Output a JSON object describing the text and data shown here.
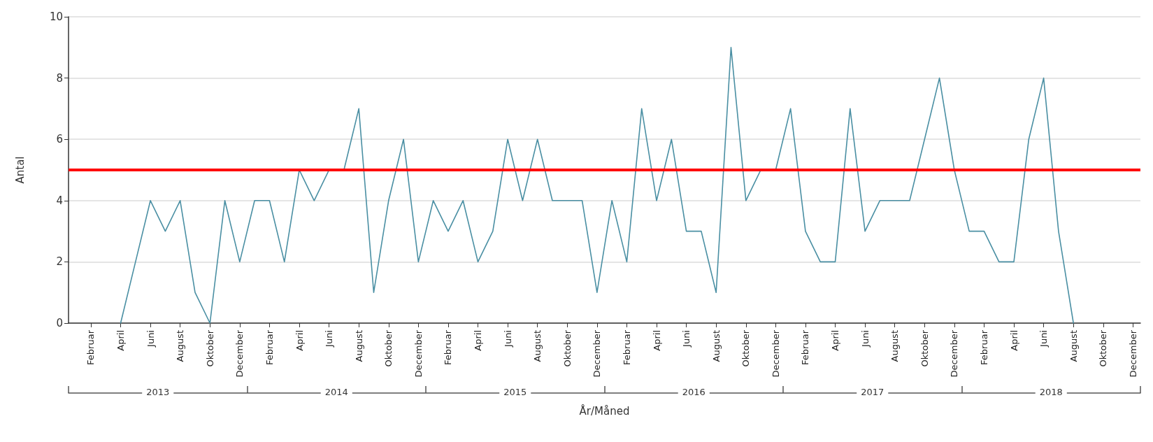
{
  "chart_data": {
    "type": "line",
    "xlabel": "År/Måned",
    "ylabel": "Antal",
    "categories": [
      null,
      "Februar",
      null,
      "April",
      null,
      "Juni",
      null,
      "August",
      null,
      "Oktober",
      null,
      "December",
      null,
      "Februar",
      null,
      "April",
      null,
      "Juni",
      null,
      "August",
      null,
      "Oktober",
      null,
      "December",
      null,
      "Februar",
      null,
      "April",
      null,
      "Juni",
      null,
      "August",
      null,
      "Oktober",
      null,
      "December",
      null,
      "Februar",
      null,
      "April",
      null,
      "Juni",
      null,
      "August",
      null,
      "Oktober",
      null,
      "December",
      null,
      "Februar",
      null,
      "April",
      null,
      "Juni",
      null,
      "August",
      null,
      "Oktober",
      null,
      "December",
      null,
      "Februar",
      null,
      "April",
      null,
      "Juni",
      null,
      "August",
      null,
      "Oktober",
      null,
      "December"
    ],
    "series": [
      {
        "color": "#4a8fa3",
        "values": [
          null,
          null,
          null,
          0,
          2,
          4,
          3,
          4,
          1,
          0,
          4,
          2,
          4,
          4,
          2,
          5,
          4,
          5,
          5,
          7,
          1,
          4,
          6,
          2,
          4,
          3,
          4,
          2,
          3,
          6,
          4,
          6,
          4,
          4,
          4,
          1,
          4,
          2,
          7,
          4,
          6,
          3,
          3,
          1,
          9,
          4,
          5,
          5,
          7,
          3,
          2,
          2,
          7,
          3,
          4,
          4,
          4,
          6,
          8,
          5,
          3,
          3,
          2,
          2,
          6,
          8,
          3,
          0,
          null,
          null,
          null,
          null
        ]
      }
    ],
    "ylim": [
      0,
      10
    ],
    "yticks": [
      0,
      2,
      4,
      6,
      8,
      10
    ],
    "grid": "y",
    "marker": "none",
    "line_style": "solid",
    "ref_lines": [
      {
        "axis": "y",
        "value": 5,
        "color": "#ff0000",
        "line_style": "solid"
      }
    ],
    "annotations": [
      "2013",
      "2014",
      "2015",
      "2016",
      "2017",
      "2018"
    ]
  }
}
